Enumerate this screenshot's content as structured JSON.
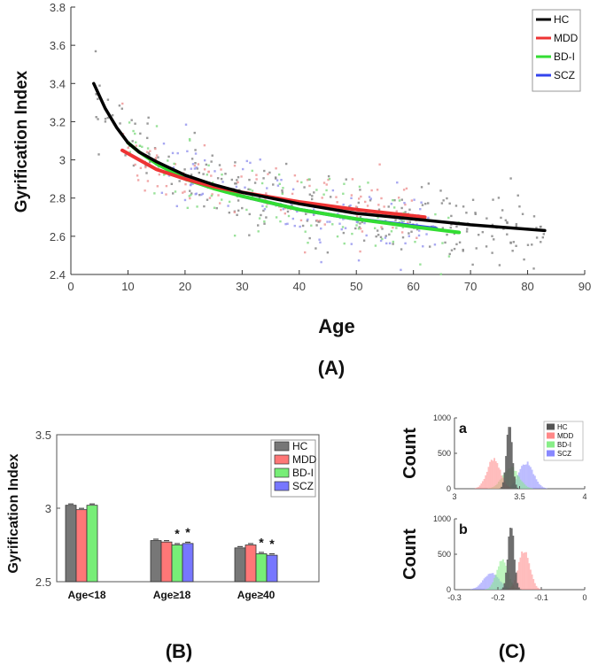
{
  "chart_data": [
    {
      "panel": "(A)",
      "type": "scatter",
      "title": "",
      "xlabel": "Age",
      "ylabel": "Gyrification Index",
      "xlim": [
        0,
        90
      ],
      "ylim": [
        2.4,
        3.8
      ],
      "xticks": [
        "0",
        "10",
        "20",
        "30",
        "40",
        "50",
        "60",
        "70",
        "80",
        "90"
      ],
      "yticks": [
        "2.4",
        "2.6",
        "2.8",
        "3",
        "3.2",
        "3.4",
        "3.6",
        "3.8"
      ],
      "legend_position": "top-right",
      "series": [
        {
          "name": "HC",
          "color": "#000000",
          "fit_range": [
            4,
            83
          ],
          "fit_values": [
            [
              4,
              3.4
            ],
            [
              6,
              3.27
            ],
            [
              8,
              3.17
            ],
            [
              10,
              3.09
            ],
            [
              12,
              3.04
            ],
            [
              15,
              2.99
            ],
            [
              20,
              2.92
            ],
            [
              25,
              2.87
            ],
            [
              30,
              2.83
            ],
            [
              35,
              2.8
            ],
            [
              40,
              2.77
            ],
            [
              50,
              2.72
            ],
            [
              60,
              2.69
            ],
            [
              70,
              2.66
            ],
            [
              83,
              2.63
            ]
          ]
        },
        {
          "name": "MDD",
          "color": "#ee3333",
          "fit_range": [
            9,
            62
          ],
          "fit_values": [
            [
              9,
              3.05
            ],
            [
              12,
              3.0
            ],
            [
              15,
              2.95
            ],
            [
              20,
              2.9
            ],
            [
              25,
              2.86
            ],
            [
              30,
              2.83
            ],
            [
              40,
              2.78
            ],
            [
              50,
              2.74
            ],
            [
              62,
              2.7
            ]
          ]
        },
        {
          "name": "BD-I",
          "color": "#33dd33",
          "fit_range": [
            10,
            68
          ],
          "fit_values": [
            [
              10,
              3.09
            ],
            [
              12,
              3.04
            ],
            [
              15,
              2.98
            ],
            [
              20,
              2.9
            ],
            [
              25,
              2.85
            ],
            [
              30,
              2.81
            ],
            [
              40,
              2.74
            ],
            [
              50,
              2.69
            ],
            [
              60,
              2.65
            ],
            [
              68,
              2.62
            ]
          ]
        },
        {
          "name": "SCZ",
          "color": "#3344ee",
          "fit_range": [
            15,
            64
          ],
          "fit_values": [
            [
              15,
              2.98
            ],
            [
              20,
              2.91
            ],
            [
              25,
              2.86
            ],
            [
              30,
              2.81
            ],
            [
              40,
              2.74
            ],
            [
              50,
              2.69
            ],
            [
              64,
              2.64
            ]
          ]
        }
      ],
      "point_colors": [
        "#888888",
        "#ee9999",
        "#88dd88",
        "#9999ee"
      ]
    },
    {
      "panel": "(B)",
      "type": "bar",
      "ylabel": "Gyrification Index",
      "ylim": [
        2.5,
        3.5
      ],
      "yticks": [
        "2.5",
        "3",
        "3.5"
      ],
      "categories": [
        "Age<18",
        "Age≥18",
        "Age≥40"
      ],
      "legend_position": "top-right",
      "series": [
        {
          "name": "HC",
          "color": "#777777",
          "values": [
            3.02,
            2.78,
            2.73
          ]
        },
        {
          "name": "MDD",
          "color": "#ff7777",
          "values": [
            2.99,
            2.77,
            2.75
          ]
        },
        {
          "name": "BD-I",
          "color": "#77ee77",
          "values": [
            3.02,
            2.75,
            2.69
          ]
        },
        {
          "name": "SCZ",
          "color": "#7777ff",
          "values": [
            null,
            2.76,
            2.68
          ]
        }
      ],
      "significance": [
        {
          "category": "Age≥18",
          "series": "BD-I",
          "marker": "*"
        },
        {
          "category": "Age≥18",
          "series": "SCZ",
          "marker": "*"
        },
        {
          "category": "Age≥40",
          "series": "BD-I",
          "marker": "*"
        },
        {
          "category": "Age≥40",
          "series": "SCZ",
          "marker": "*"
        }
      ]
    },
    {
      "panel": "(C)",
      "type": "histogram",
      "subplots": [
        {
          "label": "a",
          "ylabel": "Count",
          "xlim": [
            3,
            4
          ],
          "ylim": [
            0,
            1000
          ],
          "xticks": [
            "3",
            "3.5",
            "4"
          ],
          "yticks": [
            "0",
            "500",
            "1000"
          ],
          "series": [
            {
              "name": "HC",
              "color": "#555555",
              "mean": 3.42,
              "sd": 0.022,
              "peak": 930
            },
            {
              "name": "MDD",
              "color": "#ff8888",
              "mean": 3.3,
              "sd": 0.05,
              "peak": 420
            },
            {
              "name": "BD-I",
              "color": "#88ee88",
              "mean": 3.43,
              "sd": 0.06,
              "peak": 300
            },
            {
              "name": "SCZ",
              "color": "#8888ff",
              "mean": 3.55,
              "sd": 0.055,
              "peak": 370
            }
          ]
        },
        {
          "label": "b",
          "ylabel": "Count",
          "xlim": [
            -0.3,
            0
          ],
          "ylim": [
            0,
            1000
          ],
          "xticks": [
            "-0.3",
            "-0.2",
            "-0.1",
            "0"
          ],
          "yticks": [
            "0",
            "500",
            "1000"
          ],
          "series": [
            {
              "name": "HC",
              "color": "#555555",
              "mean": -0.17,
              "sd": 0.007,
              "peak": 920
            },
            {
              "name": "MDD",
              "color": "#ff8888",
              "mean": -0.14,
              "sd": 0.013,
              "peak": 560
            },
            {
              "name": "BD-I",
              "color": "#88ee88",
              "mean": -0.19,
              "sd": 0.013,
              "peak": 430
            },
            {
              "name": "SCZ",
              "color": "#8888ff",
              "mean": -0.215,
              "sd": 0.018,
              "peak": 230
            }
          ]
        }
      ]
    }
  ]
}
